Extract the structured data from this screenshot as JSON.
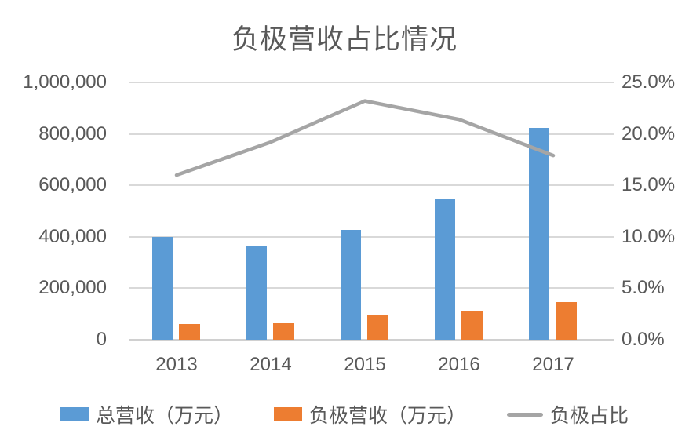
{
  "chart_data": {
    "type": "bar+line",
    "title": "负极营收占比情况",
    "categories": [
      "2013",
      "2014",
      "2015",
      "2016",
      "2017"
    ],
    "bar_series": [
      {
        "key": "total-revenue",
        "name": "总营收（万元）",
        "color": "#5B9BD5",
        "axis": "left",
        "values": [
          400000,
          362000,
          428000,
          545000,
          824000
        ]
      },
      {
        "key": "anode-revenue",
        "name": "负极营收（万元）",
        "color": "#ED7D31",
        "axis": "left",
        "values": [
          62000,
          67000,
          97000,
          113000,
          145000
        ]
      }
    ],
    "line_series": [
      {
        "key": "anode-ratio",
        "name": "负极占比",
        "color": "#A5A5A5",
        "axis": "right",
        "values": [
          16.0,
          19.2,
          23.2,
          21.4,
          17.9
        ],
        "unit": "%"
      }
    ],
    "left_axis": {
      "min": 0,
      "max": 1000000,
      "tick_labels": [
        "1,000,000",
        "800,000",
        "600,000",
        "400,000",
        "200,000",
        "0"
      ],
      "tick_values": [
        1000000,
        800000,
        600000,
        400000,
        200000,
        0
      ]
    },
    "right_axis": {
      "min": 0,
      "max": 25,
      "tick_labels": [
        "25.0%",
        "20.0%",
        "15.0%",
        "10.0%",
        "5.0%",
        "0.0%"
      ],
      "tick_values": [
        25,
        20,
        15,
        10,
        5,
        0
      ]
    },
    "grid": true,
    "legend_position": "bottom",
    "legend": [
      "总营收（万元）",
      "负极营收（万元）",
      "负极占比"
    ]
  },
  "colors": {
    "background": "#FFFFFF",
    "text": "#595959",
    "gridline": "#D9D9D9",
    "bar_blue": "#5B9BD5",
    "bar_orange": "#ED7D31",
    "line_gray": "#A5A5A5"
  }
}
